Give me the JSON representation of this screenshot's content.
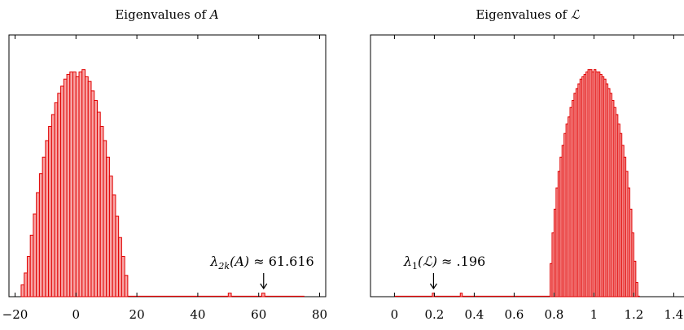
{
  "chart_data": [
    {
      "type": "bar",
      "title": "Eigenvalues of A",
      "title_plain": "Eigenvalues of ",
      "title_symbol": "A",
      "xlim": [
        -22,
        82
      ],
      "x_ticks": [
        -20,
        0,
        20,
        40,
        60,
        80
      ],
      "x_tick_labels": [
        "−20",
        "0",
        "20",
        "40",
        "60",
        "80"
      ],
      "ylim": [
        0,
        1.0
      ],
      "bin_width": 1.0,
      "bins": [
        {
          "x": -17.5,
          "y": 0.05
        },
        {
          "x": -16.5,
          "y": 0.1
        },
        {
          "x": -15.5,
          "y": 0.17
        },
        {
          "x": -14.5,
          "y": 0.26
        },
        {
          "x": -13.5,
          "y": 0.35
        },
        {
          "x": -12.5,
          "y": 0.44
        },
        {
          "x": -11.5,
          "y": 0.52
        },
        {
          "x": -10.5,
          "y": 0.59
        },
        {
          "x": -9.5,
          "y": 0.66
        },
        {
          "x": -8.5,
          "y": 0.72
        },
        {
          "x": -7.5,
          "y": 0.77
        },
        {
          "x": -6.5,
          "y": 0.82
        },
        {
          "x": -5.5,
          "y": 0.86
        },
        {
          "x": -4.5,
          "y": 0.89
        },
        {
          "x": -3.5,
          "y": 0.92
        },
        {
          "x": -2.5,
          "y": 0.94
        },
        {
          "x": -1.5,
          "y": 0.95
        },
        {
          "x": -0.5,
          "y": 0.95
        },
        {
          "x": 0.5,
          "y": 0.93
        },
        {
          "x": 1.5,
          "y": 0.95
        },
        {
          "x": 2.5,
          "y": 0.96
        },
        {
          "x": 3.5,
          "y": 0.93
        },
        {
          "x": 4.5,
          "y": 0.91
        },
        {
          "x": 5.5,
          "y": 0.87
        },
        {
          "x": 6.5,
          "y": 0.83
        },
        {
          "x": 7.5,
          "y": 0.78
        },
        {
          "x": 8.5,
          "y": 0.72
        },
        {
          "x": 9.5,
          "y": 0.66
        },
        {
          "x": 10.5,
          "y": 0.59
        },
        {
          "x": 11.5,
          "y": 0.51
        },
        {
          "x": 12.5,
          "y": 0.43
        },
        {
          "x": 13.5,
          "y": 0.34
        },
        {
          "x": 14.5,
          "y": 0.25
        },
        {
          "x": 15.5,
          "y": 0.17
        },
        {
          "x": 16.5,
          "y": 0.09
        },
        {
          "x": 50.5,
          "y": 0.015
        },
        {
          "x": 61.5,
          "y": 0.015
        }
      ],
      "baseline_range": [
        -18,
        75
      ],
      "annotation": {
        "text": "λ2k(A) ≈ 61.616",
        "text_symbol": "λ",
        "text_subscript": "2k",
        "text_argument": "(A)",
        "text_value": " ≈ 61.616",
        "x": 61.616
      },
      "grid": false
    },
    {
      "type": "bar",
      "title": "Eigenvalues of ℒ",
      "title_plain": "Eigenvalues of ",
      "title_symbol": "ℒ",
      "xlim": [
        -0.12,
        1.48
      ],
      "x_ticks": [
        0,
        0.2,
        0.4,
        0.6,
        0.8,
        1,
        1.2,
        1.4
      ],
      "x_tick_labels": [
        "0",
        "0.2",
        "0.4",
        "0.6",
        "0.8",
        "1",
        "1.2",
        "1.4"
      ],
      "ylim": [
        0,
        1.0
      ],
      "bin_width": 0.01,
      "bins": [
        {
          "x": 0.195,
          "y": 0.015
        },
        {
          "x": 0.335,
          "y": 0.015
        },
        {
          "x": 0.785,
          "y": 0.14
        },
        {
          "x": 0.795,
          "y": 0.27
        },
        {
          "x": 0.805,
          "y": 0.37
        },
        {
          "x": 0.815,
          "y": 0.46
        },
        {
          "x": 0.825,
          "y": 0.53
        },
        {
          "x": 0.835,
          "y": 0.59
        },
        {
          "x": 0.845,
          "y": 0.64
        },
        {
          "x": 0.855,
          "y": 0.69
        },
        {
          "x": 0.865,
          "y": 0.73
        },
        {
          "x": 0.875,
          "y": 0.76
        },
        {
          "x": 0.885,
          "y": 0.8
        },
        {
          "x": 0.895,
          "y": 0.83
        },
        {
          "x": 0.905,
          "y": 0.86
        },
        {
          "x": 0.915,
          "y": 0.88
        },
        {
          "x": 0.925,
          "y": 0.9
        },
        {
          "x": 0.935,
          "y": 0.92
        },
        {
          "x": 0.945,
          "y": 0.93
        },
        {
          "x": 0.955,
          "y": 0.94
        },
        {
          "x": 0.965,
          "y": 0.95
        },
        {
          "x": 0.975,
          "y": 0.96
        },
        {
          "x": 0.985,
          "y": 0.96
        },
        {
          "x": 0.995,
          "y": 0.95
        },
        {
          "x": 1.005,
          "y": 0.96
        },
        {
          "x": 1.015,
          "y": 0.95
        },
        {
          "x": 1.025,
          "y": 0.95
        },
        {
          "x": 1.035,
          "y": 0.94
        },
        {
          "x": 1.045,
          "y": 0.93
        },
        {
          "x": 1.055,
          "y": 0.92
        },
        {
          "x": 1.065,
          "y": 0.9
        },
        {
          "x": 1.075,
          "y": 0.88
        },
        {
          "x": 1.085,
          "y": 0.86
        },
        {
          "x": 1.095,
          "y": 0.83
        },
        {
          "x": 1.105,
          "y": 0.8
        },
        {
          "x": 1.115,
          "y": 0.77
        },
        {
          "x": 1.125,
          "y": 0.73
        },
        {
          "x": 1.135,
          "y": 0.69
        },
        {
          "x": 1.145,
          "y": 0.64
        },
        {
          "x": 1.155,
          "y": 0.59
        },
        {
          "x": 1.165,
          "y": 0.53
        },
        {
          "x": 1.175,
          "y": 0.46
        },
        {
          "x": 1.185,
          "y": 0.37
        },
        {
          "x": 1.195,
          "y": 0.27
        },
        {
          "x": 1.205,
          "y": 0.15
        },
        {
          "x": 1.215,
          "y": 0.06
        }
      ],
      "baseline_range": [
        0,
        1.23
      ],
      "annotation": {
        "text": "λ1(ℒ) ≈ .196",
        "text_symbol": "λ",
        "text_subscript": "1",
        "text_argument": "(ℒ)",
        "text_value": " ≈ .196",
        "x": 0.196
      },
      "grid": false
    }
  ],
  "colors": {
    "bar_fill": "#f8a5a5",
    "bar_stroke": "#e00000",
    "axis": "#000000"
  }
}
